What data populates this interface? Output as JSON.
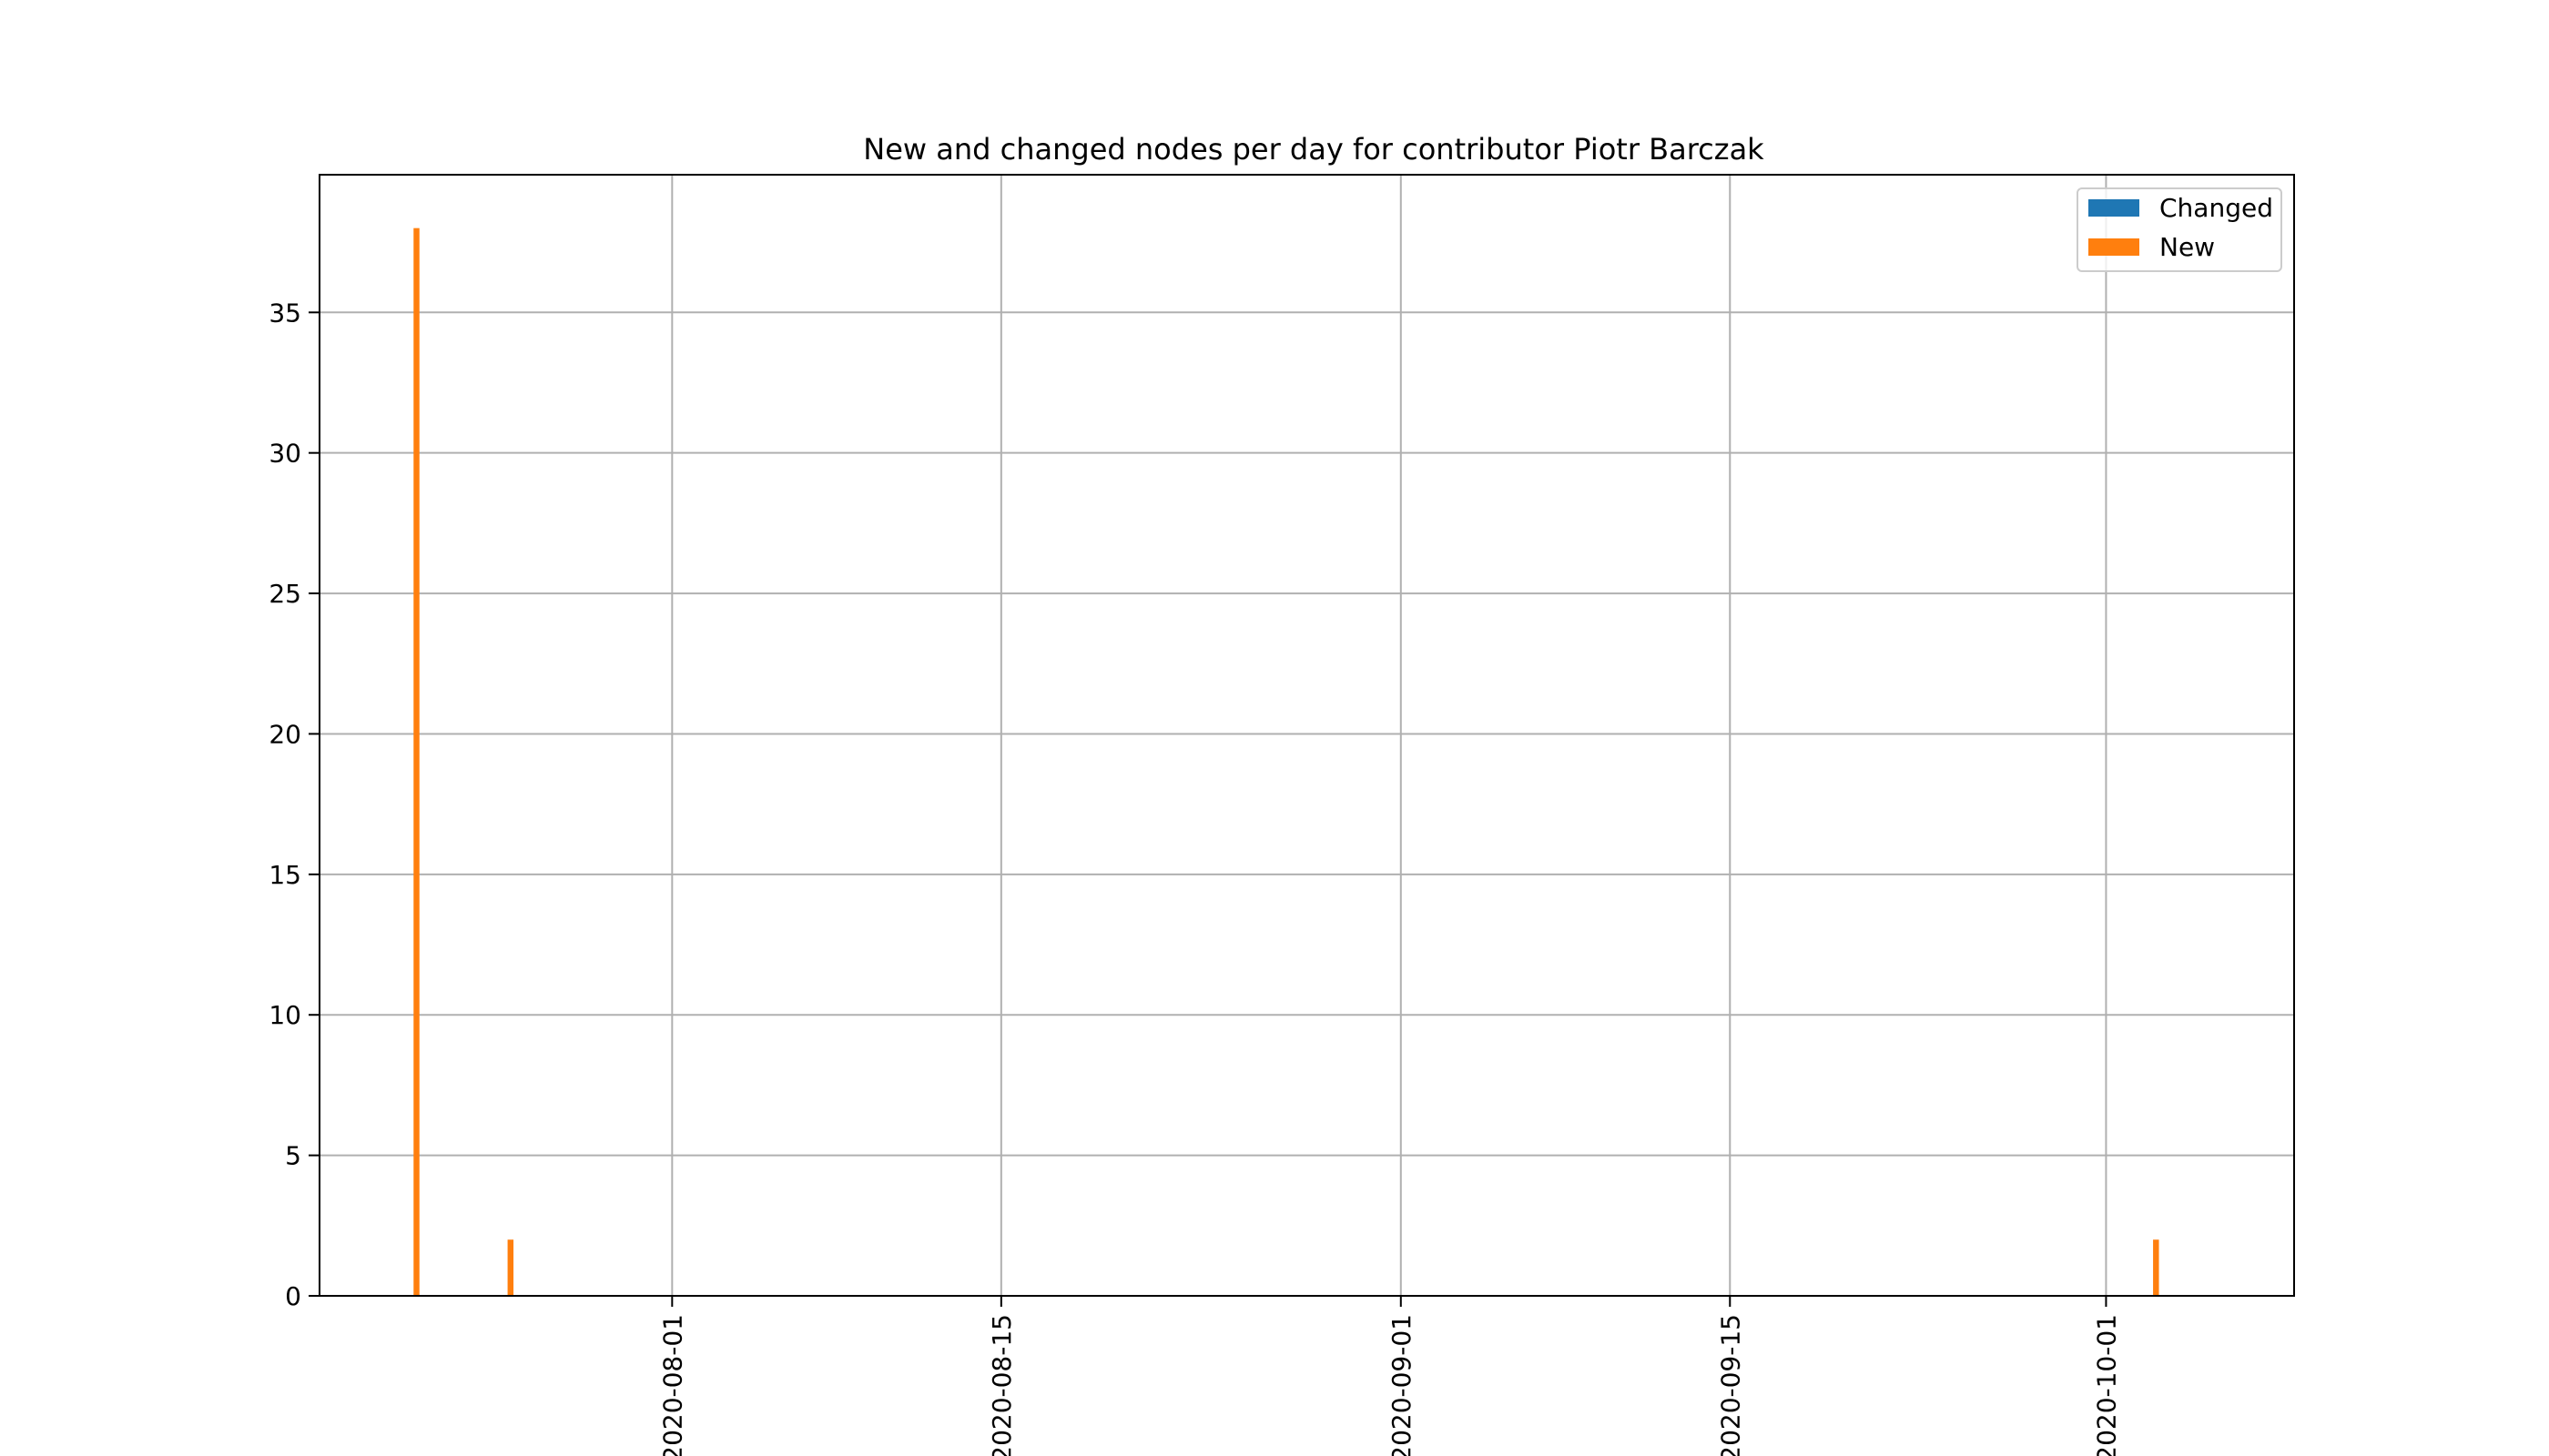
{
  "chart_data": {
    "type": "bar",
    "title": "New and changed nodes per day for contributor Piotr Barczak",
    "xlabel": "",
    "ylabel": "",
    "x_type": "date",
    "xlim": [
      "2020-07-17",
      "2020-10-09"
    ],
    "ylim": [
      0,
      39.9
    ],
    "grid": true,
    "legend_position": "top-right",
    "x_ticks": [
      "2020-08-01",
      "2020-08-15",
      "2020-09-01",
      "2020-09-15",
      "2020-10-01"
    ],
    "y_ticks": [
      0,
      5,
      10,
      15,
      20,
      25,
      30,
      35
    ],
    "dates": [
      "2020-07-21",
      "2020-07-25",
      "2020-10-03"
    ],
    "series": [
      {
        "name": "Changed",
        "color": "#1f77b4",
        "values": [
          0,
          0,
          0
        ]
      },
      {
        "name": "New",
        "color": "#ff7f0e",
        "values": [
          38,
          2,
          2
        ]
      }
    ]
  }
}
